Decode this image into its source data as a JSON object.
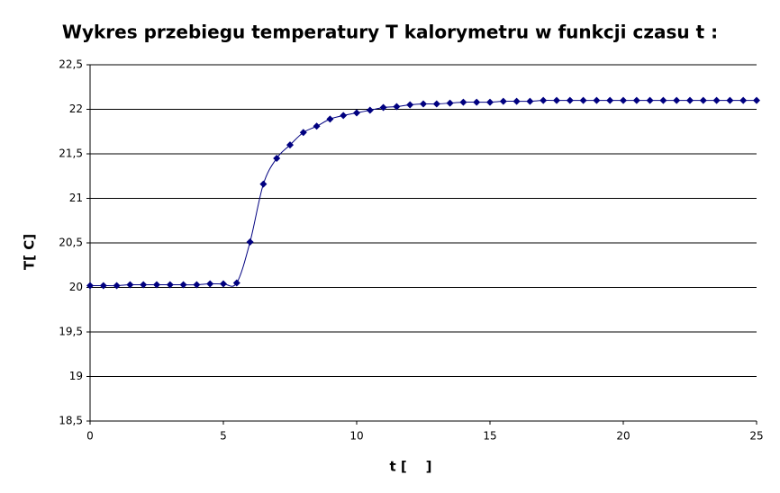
{
  "chart_data": {
    "type": "line",
    "title": "Wykres przebiegu temperatury T kalorymetru w funkcji czasu t :",
    "x_label": "t [    ]",
    "y_label": "T[ C]",
    "x": [
      0,
      0.5,
      1,
      1.5,
      2,
      2.5,
      3,
      3.5,
      4,
      4.5,
      5,
      5.5,
      6,
      6.5,
      7,
      7.5,
      8,
      8.5,
      9,
      9.5,
      10,
      10.5,
      11,
      11.5,
      12,
      12.5,
      13,
      13.5,
      14,
      14.5,
      15,
      15.5,
      16,
      16.5,
      17,
      17.5,
      18,
      18.5,
      19,
      19.5,
      20,
      20.5,
      21,
      21.5,
      22,
      22.5,
      23,
      23.5,
      24,
      24.5,
      25
    ],
    "values": [
      20.02,
      20.02,
      20.02,
      20.03,
      20.03,
      20.03,
      20.03,
      20.03,
      20.03,
      20.04,
      20.04,
      20.05,
      20.51,
      21.16,
      21.45,
      21.6,
      21.74,
      21.81,
      21.89,
      21.93,
      21.96,
      21.99,
      22.02,
      22.03,
      22.05,
      22.06,
      22.06,
      22.07,
      22.08,
      22.08,
      22.08,
      22.09,
      22.09,
      22.09,
      22.1,
      22.1,
      22.1,
      22.1,
      22.1,
      22.1,
      22.1,
      22.1,
      22.1,
      22.1,
      22.1,
      22.1,
      22.1,
      22.1,
      22.1,
      22.1,
      22.1
    ],
    "color": "#000080",
    "xlim": [
      0,
      25
    ],
    "xticks": [
      0,
      5,
      10,
      15,
      20,
      25
    ],
    "ylim": [
      18.5,
      22.5
    ],
    "yticks": [
      {
        "value": 18.5,
        "label": "18,5"
      },
      19,
      {
        "value": 19.5,
        "label": "19,5"
      },
      20,
      {
        "value": 20.5,
        "label": "20,5"
      },
      21,
      {
        "value": 21.5,
        "label": "21,5"
      },
      22,
      {
        "value": 22.5,
        "label": "22,5"
      }
    ],
    "grid": true
  }
}
